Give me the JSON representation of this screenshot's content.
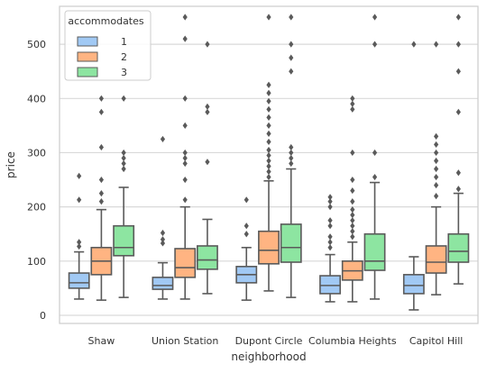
{
  "chart_data": {
    "type": "box",
    "xlabel": "neighborhood",
    "ylabel": "price",
    "ylim": [
      -15,
      570
    ],
    "yticks": [
      0,
      100,
      200,
      300,
      400,
      500
    ],
    "grid": true,
    "legend": {
      "title": "accommodates",
      "placement": "top-left",
      "entries": [
        "1",
        "2",
        "3"
      ]
    },
    "colors": {
      "1": "#a1c9f4",
      "2": "#ffb482",
      "3": "#8de5a1",
      "line": "#5a5a5a",
      "grid": "#d9d9d9",
      "frame": "#cccccc"
    },
    "categories": [
      "Shaw",
      "Union Station",
      "Dupont Circle",
      "Columbia Heights",
      "Capitol Hill"
    ],
    "series": [
      {
        "name": "1",
        "boxes": [
          {
            "whislo": 30,
            "q1": 50,
            "med": 60,
            "q3": 78,
            "whishi": 117,
            "fliers": [
              127,
              135,
              213,
              257
            ]
          },
          {
            "whislo": 30,
            "q1": 48,
            "med": 55,
            "q3": 70,
            "whishi": 97,
            "fliers": [
              133,
              140,
              152,
              325
            ]
          },
          {
            "whislo": 28,
            "q1": 60,
            "med": 75,
            "q3": 90,
            "whishi": 125,
            "fliers": [
              150,
              165,
              213
            ]
          },
          {
            "whislo": 25,
            "q1": 40,
            "med": 55,
            "q3": 73,
            "whishi": 112,
            "fliers": [
              125,
              135,
              145,
              165,
              175,
              200,
              210,
              218
            ]
          },
          {
            "whislo": 10,
            "q1": 40,
            "med": 55,
            "q3": 75,
            "whishi": 108,
            "fliers": [
              500
            ]
          }
        ]
      },
      {
        "name": "2",
        "boxes": [
          {
            "whislo": 28,
            "q1": 75,
            "med": 100,
            "q3": 125,
            "whishi": 195,
            "fliers": [
              210,
              225,
              250,
              310,
              375,
              400
            ]
          },
          {
            "whislo": 30,
            "q1": 70,
            "med": 88,
            "q3": 123,
            "whishi": 200,
            "fliers": [
              213,
              250,
              280,
              290,
              300,
              350,
              400,
              510,
              550
            ]
          },
          {
            "whislo": 45,
            "q1": 95,
            "med": 120,
            "q3": 155,
            "whishi": 248,
            "fliers": [
              255,
              265,
              275,
              285,
              295,
              305,
              320,
              335,
              350,
              365,
              380,
              395,
              410,
              425,
              550
            ]
          },
          {
            "whislo": 25,
            "q1": 65,
            "med": 82,
            "q3": 100,
            "whishi": 135,
            "fliers": [
              145,
              155,
              165,
              175,
              185,
              195,
              210,
              230,
              250,
              300,
              380,
              390,
              400
            ]
          },
          {
            "whislo": 38,
            "q1": 78,
            "med": 98,
            "q3": 128,
            "whishi": 200,
            "fliers": [
              220,
              240,
              255,
              270,
              285,
              300,
              315,
              330,
              500
            ]
          }
        ]
      },
      {
        "name": "3",
        "boxes": [
          {
            "whislo": 33,
            "q1": 110,
            "med": 125,
            "q3": 165,
            "whishi": 236,
            "fliers": [
              270,
              280,
              290,
              300,
              400
            ]
          },
          {
            "whislo": 40,
            "q1": 85,
            "med": 102,
            "q3": 128,
            "whishi": 177,
            "fliers": [
              283,
              375,
              385,
              500
            ]
          },
          {
            "whislo": 33,
            "q1": 98,
            "med": 125,
            "q3": 168,
            "whishi": 270,
            "fliers": [
              280,
              290,
              300,
              310,
              450,
              475,
              500,
              550
            ]
          },
          {
            "whislo": 30,
            "q1": 83,
            "med": 100,
            "q3": 150,
            "whishi": 245,
            "fliers": [
              255,
              300,
              500,
              550
            ]
          },
          {
            "whislo": 58,
            "q1": 98,
            "med": 118,
            "q3": 150,
            "whishi": 225,
            "fliers": [
              233,
              263,
              375,
              450,
              500,
              550
            ]
          }
        ]
      }
    ]
  }
}
